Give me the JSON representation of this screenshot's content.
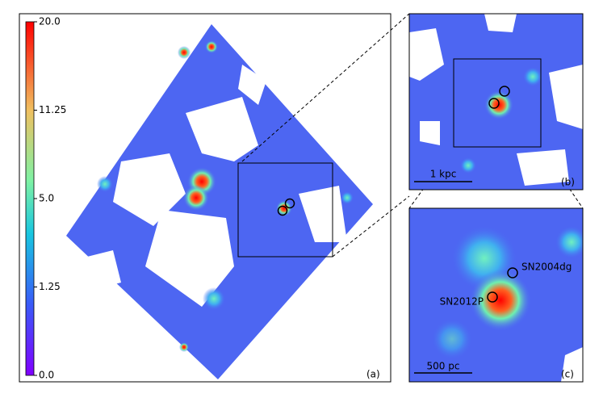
{
  "colorbar": {
    "scale": "sqrt",
    "lim": [
      0,
      20
    ],
    "ticks": [
      {
        "value": 0,
        "label": "0.0"
      },
      1.25,
      {
        "value": 5,
        "label": "5.0"
      },
      11.25,
      {
        "value": 20,
        "label": "20.0"
      }
    ]
  },
  "panels": [
    {
      "label": "(a)"
    },
    {
      "label": "(b)",
      "scalebar": "1 kpc"
    },
    {
      "label": "(c)",
      "scalebar": "500 pc",
      "annotations": [
        "SN2004dg",
        "SN2012P"
      ]
    }
  ]
}
